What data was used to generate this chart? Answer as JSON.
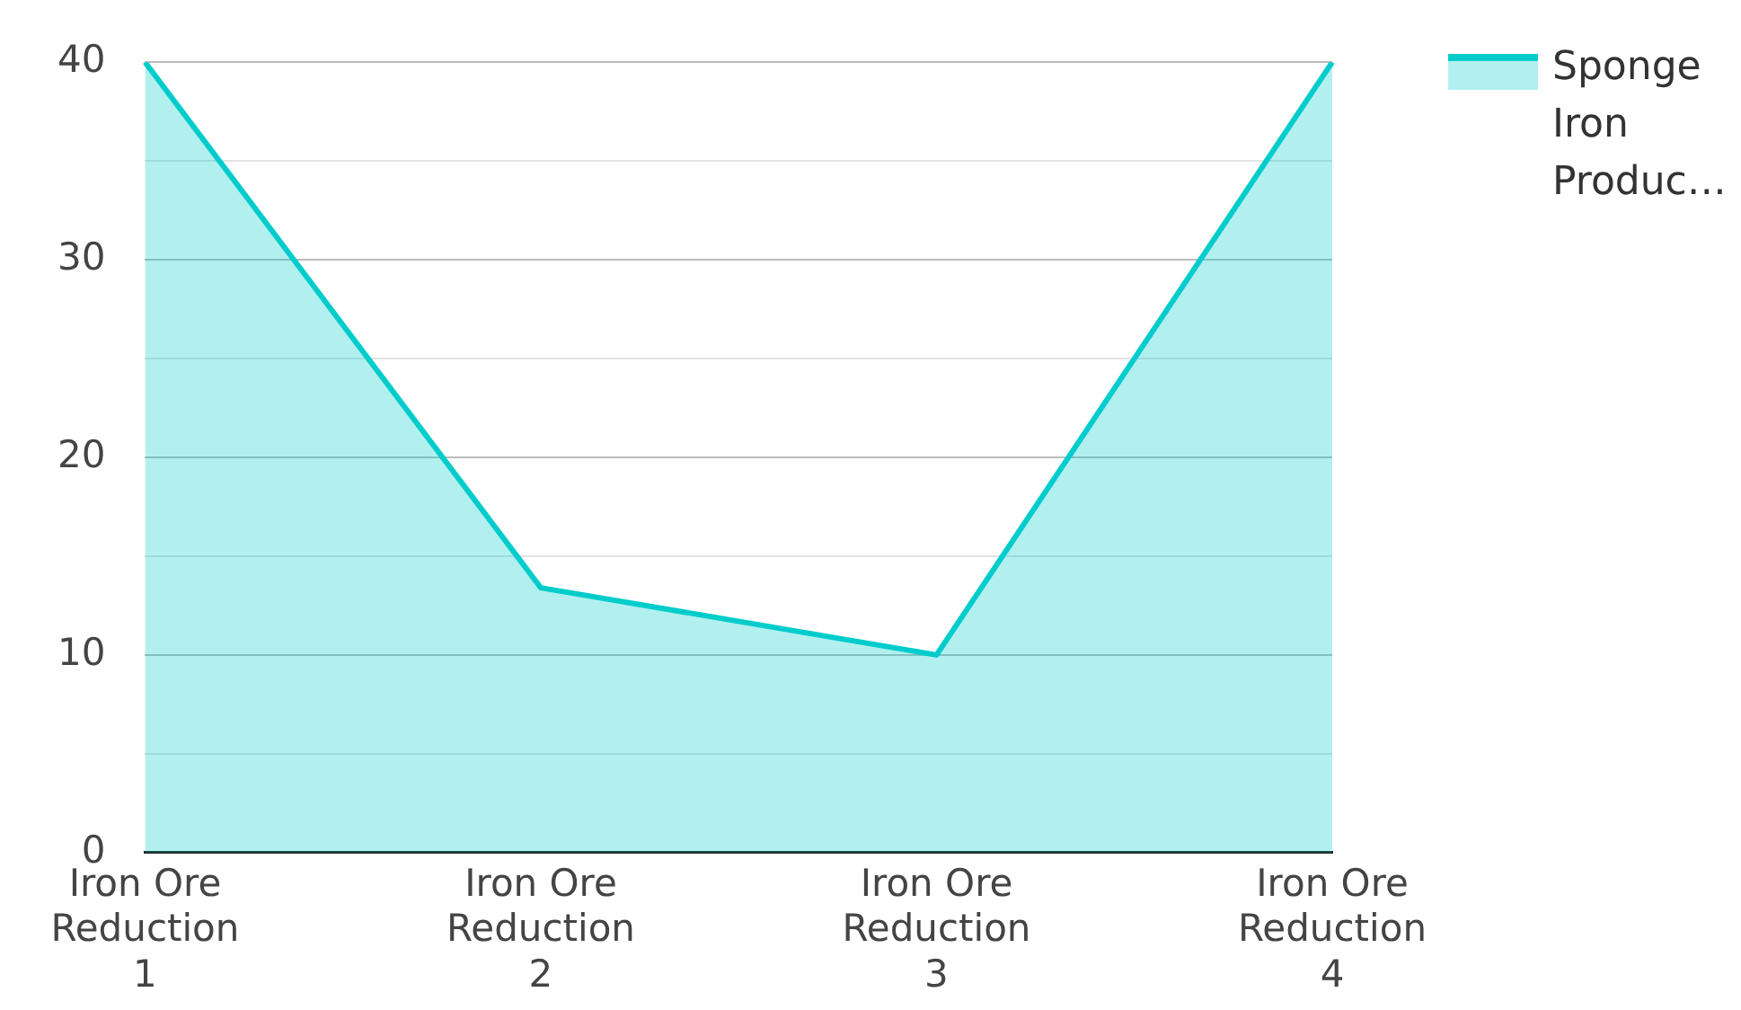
{
  "chart_data": {
    "type": "area",
    "categories": [
      "Iron Ore Reduction 1",
      "Iron Ore Reduction 2",
      "Iron Ore Reduction 3",
      "Iron Ore Reduction 4"
    ],
    "series": [
      {
        "name": "Sponge Iron Produc…",
        "color": "#00cccc",
        "values": [
          40,
          13.4,
          10,
          40
        ]
      }
    ],
    "ylim": [
      0,
      40
    ],
    "yticks": [
      0,
      {
        "value": 5,
        "label": null
      },
      10,
      {
        "value": 15,
        "label": null
      },
      20,
      {
        "value": 25,
        "label": null
      },
      30,
      {
        "value": 35,
        "label": null
      },
      40
    ],
    "grid": "y",
    "legend": "top right",
    "marker": "none",
    "line_style": "solid"
  }
}
